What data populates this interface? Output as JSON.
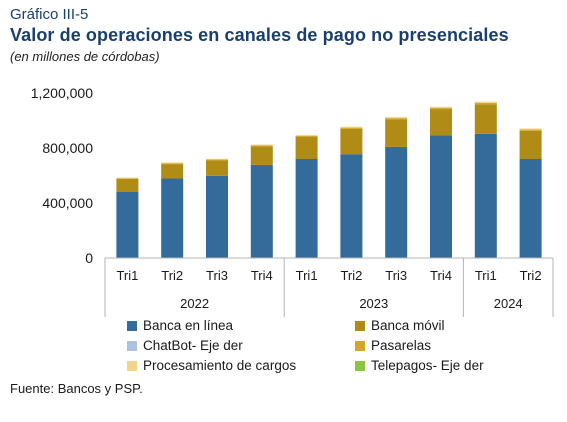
{
  "header": {
    "kicker": "Gráfico III-5",
    "title": "Valor de operaciones en canales de pago no presenciales",
    "subtitle": "(en millones de córdobas)"
  },
  "source": "Fuente: Bancos y PSP.",
  "chart_data": {
    "type": "bar",
    "stacked": true,
    "categories": [
      "Tri1",
      "Tri2",
      "Tri3",
      "Tri4",
      "Tri1",
      "Tri2",
      "Tri3",
      "Tri4",
      "Tri1",
      "Tri2"
    ],
    "year_groups": [
      {
        "label": "2022",
        "count": 4
      },
      {
        "label": "2023",
        "count": 4
      },
      {
        "label": "2024",
        "count": 2
      }
    ],
    "y_ticks": [
      "0",
      "400,000",
      "800,000",
      "1,200,000"
    ],
    "ylim": [
      0,
      1200000
    ],
    "grid": false,
    "legend_position": "bottom",
    "series": [
      {
        "name": "Banca en línea",
        "color": "#336b9b",
        "values": [
          480000,
          578000,
          598000,
          677000,
          720000,
          755000,
          808000,
          893000,
          903000,
          720000
        ]
      },
      {
        "name": "Banca móvil",
        "color": "#b08b16",
        "values": [
          95000,
          105000,
          112000,
          135000,
          160000,
          185000,
          200000,
          190000,
          215000,
          205000
        ]
      },
      {
        "name": "ChatBot- Eje der",
        "color": "#a9c4dc",
        "values": [
          0,
          0,
          0,
          0,
          0,
          0,
          0,
          0,
          0,
          0
        ]
      },
      {
        "name": "Pasarelas",
        "color": "#d4a62a",
        "values": [
          5000,
          6000,
          6000,
          7000,
          8000,
          8000,
          9000,
          9000,
          10000,
          9000
        ]
      },
      {
        "name": "Procesamiento de cargos",
        "color": "#f0d58a",
        "values": [
          5000,
          6000,
          6000,
          6000,
          7000,
          7000,
          8000,
          8000,
          9000,
          8000
        ]
      },
      {
        "name": "Telepagos- Eje der",
        "color": "#8cc63f",
        "values": [
          0,
          0,
          0,
          0,
          0,
          0,
          0,
          0,
          0,
          0
        ]
      }
    ]
  }
}
